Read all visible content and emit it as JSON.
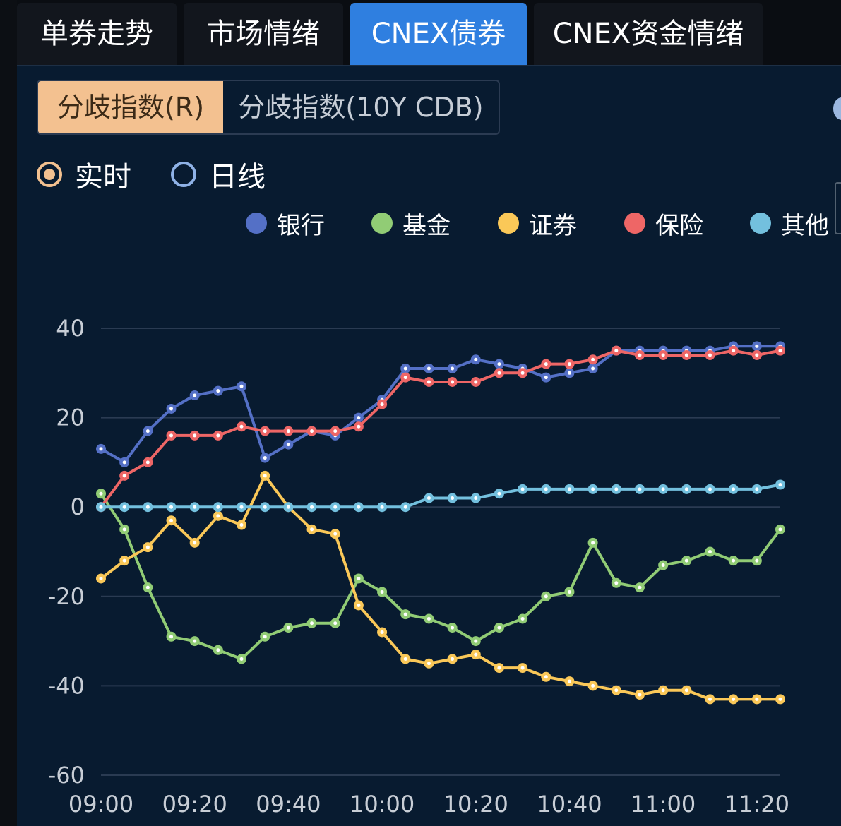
{
  "tabs": [
    {
      "label": "单券走势",
      "active": false
    },
    {
      "label": "市场情绪",
      "active": false
    },
    {
      "label": "CNEX债券",
      "active": true
    },
    {
      "label": "CNEX资金情绪",
      "active": false
    }
  ],
  "segment": {
    "items": [
      {
        "label": "分歧指数(R)",
        "active": true
      },
      {
        "label": "分歧指数(10Y CDB)",
        "active": false
      }
    ]
  },
  "mode": {
    "options": [
      {
        "label": "实时",
        "selected": true
      },
      {
        "label": "日线",
        "selected": false
      }
    ]
  },
  "chart_data": {
    "type": "line",
    "title": "",
    "xlabel": "",
    "ylabel": "",
    "ylim": [
      -60,
      40
    ],
    "y_ticks": [
      40,
      20,
      0,
      -20,
      -40,
      -60
    ],
    "x_tick_labels": [
      "09:00",
      "09:20",
      "09:40",
      "10:00",
      "10:20",
      "10:40",
      "11:00",
      "11:20"
    ],
    "grid": true,
    "legend_position": "top",
    "x": [
      "09:00",
      "09:05",
      "09:10",
      "09:15",
      "09:20",
      "09:25",
      "09:30",
      "09:35",
      "09:40",
      "09:45",
      "09:50",
      "09:55",
      "10:00",
      "10:05",
      "10:10",
      "10:15",
      "10:20",
      "10:25",
      "10:30",
      "10:35",
      "10:40",
      "10:45",
      "10:50",
      "10:55",
      "11:00",
      "11:05",
      "11:10",
      "11:15",
      "11:20",
      "11:25"
    ],
    "series": [
      {
        "name": "银行",
        "color": "#5470c6",
        "values": [
          13,
          10,
          17,
          22,
          25,
          26,
          27,
          11,
          14,
          17,
          16,
          20,
          24,
          31,
          31,
          31,
          33,
          32,
          31,
          29,
          30,
          31,
          35,
          35,
          35,
          35,
          35,
          36,
          36,
          36
        ]
      },
      {
        "name": "基金",
        "color": "#91cc75",
        "values": [
          3,
          -5,
          -18,
          -29,
          -30,
          -32,
          -34,
          -29,
          -27,
          -26,
          -26,
          -16,
          -19,
          -24,
          -25,
          -27,
          -30,
          -27,
          -25,
          -20,
          -19,
          -8,
          -17,
          -18,
          -13,
          -12,
          -10,
          -12,
          -12,
          -5
        ]
      },
      {
        "name": "证券",
        "color": "#fac858",
        "values": [
          -16,
          -12,
          -9,
          -3,
          -8,
          -2,
          -4,
          7,
          0,
          -5,
          -6,
          -22,
          -28,
          -34,
          -35,
          -34,
          -33,
          -36,
          -36,
          -38,
          -39,
          -40,
          -41,
          -42,
          -41,
          -41,
          -43,
          -43,
          -43,
          -43
        ]
      },
      {
        "name": "保险",
        "color": "#ee6666",
        "values": [
          0,
          7,
          10,
          16,
          16,
          16,
          18,
          17,
          17,
          17,
          17,
          18,
          23,
          29,
          28,
          28,
          28,
          30,
          30,
          32,
          32,
          33,
          35,
          34,
          34,
          34,
          34,
          35,
          34,
          35
        ]
      },
      {
        "name": "其他",
        "color": "#73c0de",
        "values": [
          0,
          0,
          0,
          0,
          0,
          0,
          0,
          0,
          0,
          0,
          0,
          0,
          0,
          0,
          2,
          2,
          2,
          3,
          4,
          4,
          4,
          4,
          4,
          4,
          4,
          4,
          4,
          4,
          4,
          5
        ]
      }
    ]
  },
  "colors": {
    "active_tab": "#2f7fe0",
    "segment_active": "#f3c190",
    "background": "#081b30"
  }
}
